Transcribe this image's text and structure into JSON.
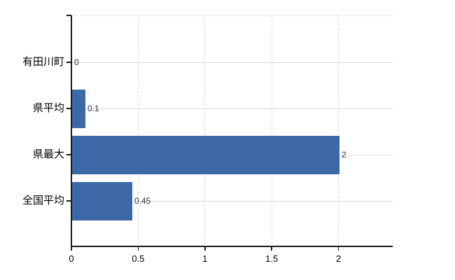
{
  "chart_data": {
    "type": "bar",
    "orientation": "horizontal",
    "categories": [
      "有田川町",
      "県平均",
      "県最大",
      "全国平均"
    ],
    "values": [
      0,
      0.1,
      2,
      0.45
    ],
    "value_labels": [
      "0",
      "0.1",
      "2",
      "0.45"
    ],
    "x_tick_values": [
      0,
      0.5,
      1,
      1.5,
      2
    ],
    "x_tick_labels": [
      "0",
      "0.5",
      "1",
      "1.5",
      "2"
    ],
    "x_axis_range": [
      0,
      2.4
    ],
    "grid": true,
    "bar_color": "#3c68a8",
    "colors": {
      "axis": "#1a1a1a",
      "horizontal_gridline": "#d6dcd6",
      "vertical_gridline": "#d3d5d8",
      "category_text": "#000000",
      "value_text": "#333333",
      "background": "#ffffff"
    }
  }
}
